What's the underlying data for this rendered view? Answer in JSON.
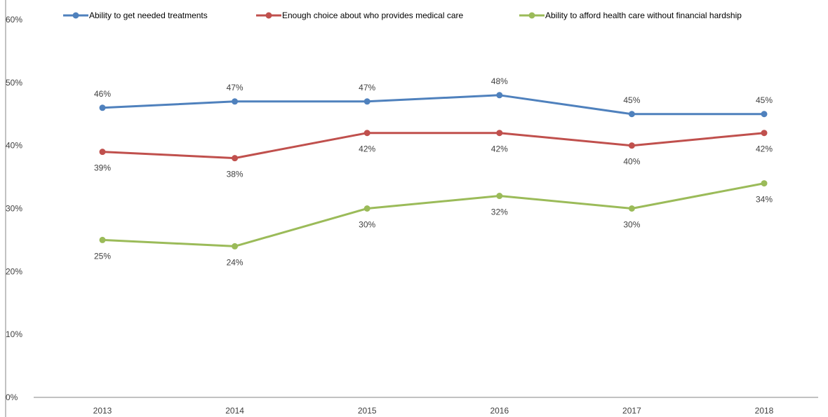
{
  "chart_data": {
    "type": "line",
    "title": "",
    "xlabel": "",
    "ylabel": "",
    "categories": [
      "2013",
      "2014",
      "2015",
      "2016",
      "2017",
      "2018"
    ],
    "ylim": [
      0,
      60
    ],
    "y_ticks": [
      0,
      10,
      20,
      30,
      40,
      50,
      60
    ],
    "y_tick_labels": [
      "0%",
      "10%",
      "20%",
      "30%",
      "40%",
      "50%",
      "60%"
    ],
    "grid": false,
    "legend_position": "top",
    "series": [
      {
        "name": "Ability to get needed treatments",
        "color": "#4F81BD",
        "values": [
          46,
          47,
          47,
          48,
          45,
          45
        ],
        "labels": [
          "46%",
          "47%",
          "47%",
          "48%",
          "45%",
          "45%"
        ],
        "label_position": "above"
      },
      {
        "name": "Enough choice about who provides medical care",
        "color": "#C0504D",
        "values": [
          39,
          38,
          42,
          42,
          40,
          42
        ],
        "labels": [
          "39%",
          "38%",
          "42%",
          "42%",
          "40%",
          "42%"
        ],
        "label_position": "below"
      },
      {
        "name": "Ability to afford health care without financial hardship",
        "color": "#9BBB59",
        "values": [
          25,
          24,
          30,
          32,
          30,
          34
        ],
        "labels": [
          "25%",
          "24%",
          "30%",
          "32%",
          "30%",
          "34%"
        ],
        "label_position": "below"
      }
    ]
  }
}
